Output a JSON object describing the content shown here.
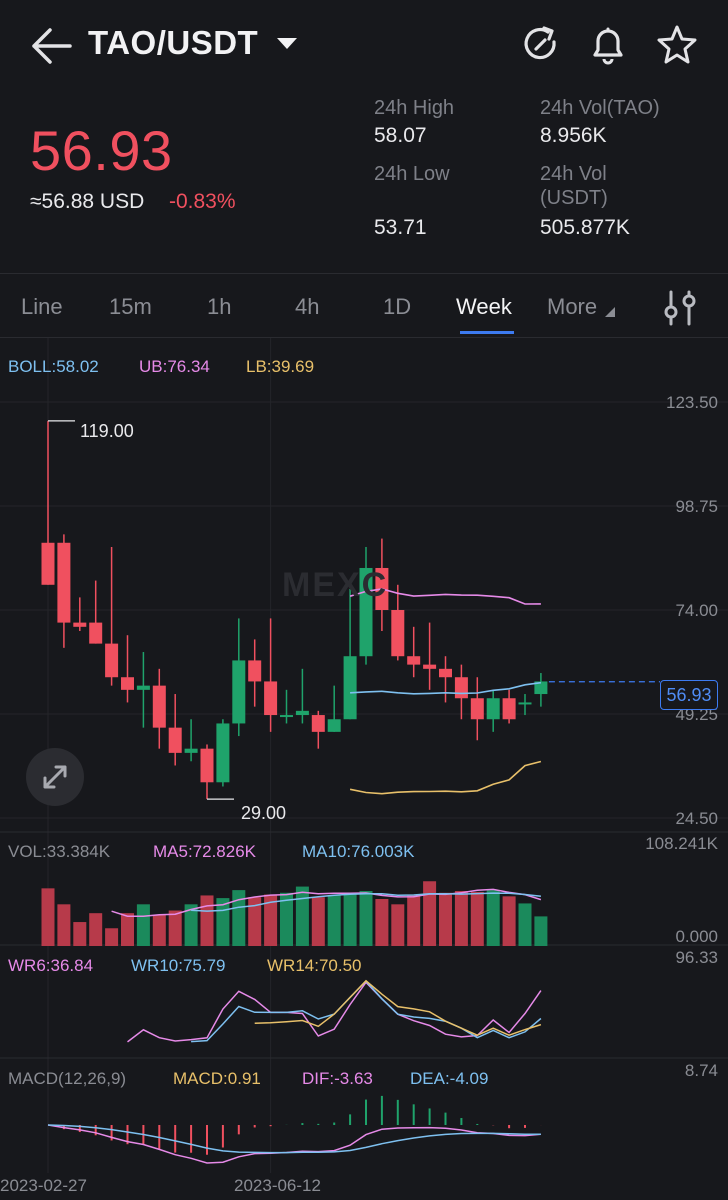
{
  "header": {
    "title": "TAO/USDT",
    "icons": [
      "back-arrow-icon",
      "refresh-icon",
      "bell-icon",
      "star-icon",
      "caret-down-icon"
    ]
  },
  "price": {
    "last": "56.93",
    "usd": "≈56.88 USD",
    "change": "-0.83%",
    "up_color": "#1fa36b",
    "down_color": "#f0505f"
  },
  "stats": {
    "high_label": "24h High",
    "high": "58.07",
    "low_label": "24h Low",
    "low": "53.71",
    "vol_tao_label": "24h Vol(TAO)",
    "vol_tao": "8.956K",
    "vol_usdt_label_1": "24h Vol",
    "vol_usdt_label_2": "(USDT)",
    "vol_usdt": "505.877K"
  },
  "tabs": [
    {
      "label": "Line"
    },
    {
      "label": "15m"
    },
    {
      "label": "1h"
    },
    {
      "label": "4h"
    },
    {
      "label": "1D"
    },
    {
      "label": "Week",
      "active": true
    },
    {
      "label": "More"
    }
  ],
  "indicators": {
    "boll": "BOLL:58.02",
    "ub": "UB:76.34",
    "lb": "LB:39.69",
    "vol": "VOL:33.384K",
    "ma5": "MA5:72.826K",
    "ma10": "MA10:76.003K",
    "wr6": "WR6:36.84",
    "wr10": "WR10:75.79",
    "wr14": "WR14:70.50",
    "macd_title": "MACD(12,26,9)",
    "macd": "MACD:0.91",
    "dif": "DIF:-3.63",
    "dea": "DEA:-4.09"
  },
  "watermark": "MEXC",
  "chart_data": {
    "type": "candlestick",
    "interval": "Week",
    "y_ticks": [
      "123.50",
      "98.75",
      "74.00",
      "49.25",
      "24.50"
    ],
    "y_range": [
      24.5,
      123.5
    ],
    "high_marker": "119.00",
    "low_marker": "29.00",
    "last_price": "56.93",
    "vol_axis": [
      "108.241K",
      "0.000"
    ],
    "vol_range": [
      0,
      108241
    ],
    "wr_axis": "96.33",
    "macd_axis": "8.74",
    "dates": [
      "2023-02-27",
      "2023-06-12"
    ],
    "date_index": [
      0,
      14
    ],
    "candles": [
      {
        "o": 90,
        "c": 80,
        "h": 119,
        "l": 80
      },
      {
        "o": 90,
        "c": 71,
        "h": 92,
        "l": 65
      },
      {
        "o": 71,
        "c": 70,
        "h": 77,
        "l": 69
      },
      {
        "o": 71,
        "c": 66,
        "h": 81,
        "l": 66
      },
      {
        "o": 66,
        "c": 58,
        "h": 89,
        "l": 56
      },
      {
        "o": 58,
        "c": 55,
        "h": 68,
        "l": 52
      },
      {
        "o": 55,
        "c": 56,
        "h": 64,
        "l": 46
      },
      {
        "o": 56,
        "c": 46,
        "h": 60,
        "l": 41
      },
      {
        "o": 46,
        "c": 40,
        "h": 54,
        "l": 37
      },
      {
        "o": 40,
        "c": 41,
        "h": 48,
        "l": 38
      },
      {
        "o": 41,
        "c": 33,
        "h": 42,
        "l": 29
      },
      {
        "o": 33,
        "c": 47,
        "h": 48,
        "l": 32
      },
      {
        "o": 47,
        "c": 62,
        "h": 72,
        "l": 44
      },
      {
        "o": 62,
        "c": 57,
        "h": 67,
        "l": 51
      },
      {
        "o": 57,
        "c": 49,
        "h": 72,
        "l": 45
      },
      {
        "o": 49,
        "c": 49,
        "h": 55,
        "l": 47
      },
      {
        "o": 49,
        "c": 50,
        "h": 60,
        "l": 47
      },
      {
        "o": 49,
        "c": 45,
        "h": 50,
        "l": 41
      },
      {
        "o": 45,
        "c": 48,
        "h": 56,
        "l": 45
      },
      {
        "o": 48,
        "c": 63,
        "h": 79,
        "l": 48
      },
      {
        "o": 63,
        "c": 84,
        "h": 89,
        "l": 61
      },
      {
        "o": 84,
        "c": 74,
        "h": 91,
        "l": 69
      },
      {
        "o": 74,
        "c": 63,
        "h": 80,
        "l": 62
      },
      {
        "o": 63,
        "c": 61,
        "h": 70,
        "l": 58
      },
      {
        "o": 61,
        "c": 60,
        "h": 71,
        "l": 55
      },
      {
        "o": 60,
        "c": 58,
        "h": 63,
        "l": 52
      },
      {
        "o": 58,
        "c": 53,
        "h": 61,
        "l": 48
      },
      {
        "o": 53,
        "c": 48,
        "h": 58,
        "l": 43
      },
      {
        "o": 48,
        "c": 53,
        "h": 55,
        "l": 45
      },
      {
        "o": 53,
        "c": 48,
        "h": 55,
        "l": 47
      },
      {
        "o": 52,
        "c": 52,
        "h": 54,
        "l": 49
      },
      {
        "o": 54,
        "c": 57,
        "h": 59,
        "l": 51
      }
    ],
    "volumes": [
      65000,
      47000,
      27000,
      37000,
      20000,
      37000,
      47000,
      35000,
      40000,
      47000,
      57000,
      54000,
      63000,
      55000,
      58000,
      60000,
      67000,
      55000,
      57000,
      58000,
      62000,
      53000,
      47000,
      58000,
      73000,
      60000,
      62000,
      61000,
      63000,
      56000,
      48000,
      33384
    ]
  }
}
